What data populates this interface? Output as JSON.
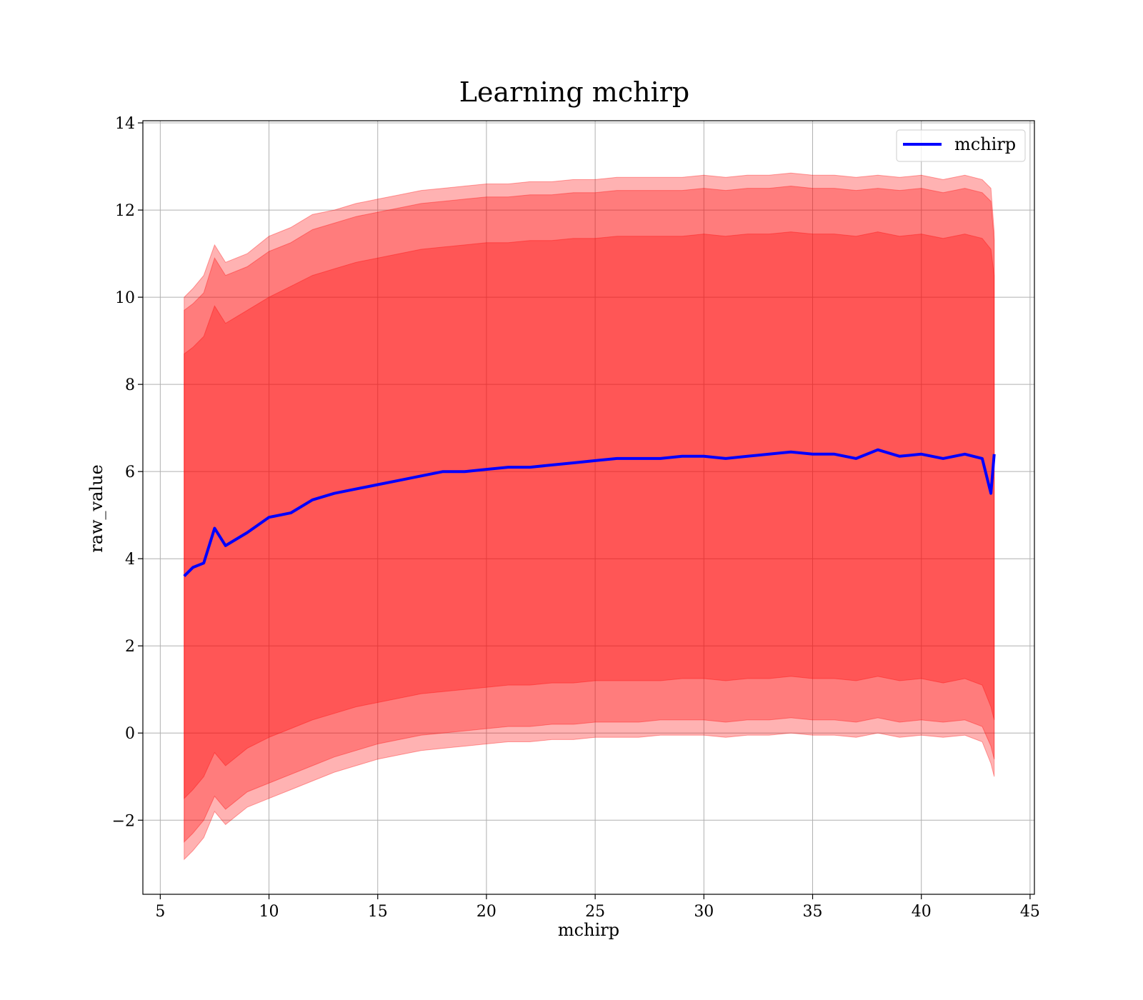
{
  "chart_data": {
    "type": "line",
    "title": "Learning mchirp",
    "xlabel": "mchirp",
    "ylabel": "raw_value",
    "xlim": [
      4.2,
      45.2
    ],
    "ylim": [
      -3.7,
      14.05
    ],
    "xticks": [
      5,
      10,
      15,
      20,
      25,
      30,
      35,
      40,
      45
    ],
    "xtick_labels": [
      "5",
      "10",
      "15",
      "20",
      "25",
      "30",
      "35",
      "40",
      "45"
    ],
    "yticks": [
      -2,
      0,
      2,
      4,
      6,
      8,
      10,
      12,
      14
    ],
    "ytick_labels": [
      "−2",
      "0",
      "2",
      "4",
      "6",
      "8",
      "10",
      "12",
      "14"
    ],
    "grid": true,
    "legend_position": "top-right",
    "colors": {
      "line": "#0000ff",
      "band": "#ff0000",
      "grid": "#b0b0b0"
    },
    "band_opacity": [
      0.3,
      0.3,
      0.3
    ],
    "series": [
      {
        "name": "mchirp",
        "x": [
          6.1,
          6.5,
          7.0,
          7.5,
          8.0,
          9.0,
          10.0,
          11.0,
          12.0,
          13.0,
          14.0,
          15.0,
          16.0,
          17.0,
          18.0,
          19.0,
          20.0,
          21.0,
          22.0,
          23.0,
          24.0,
          25.0,
          26.0,
          27.0,
          28.0,
          29.0,
          30.0,
          31.0,
          32.0,
          33.0,
          34.0,
          35.0,
          36.0,
          37.0,
          38.0,
          39.0,
          40.0,
          41.0,
          42.0,
          42.8,
          43.2,
          43.35
        ],
        "values": [
          3.6,
          3.8,
          3.9,
          4.7,
          4.3,
          4.6,
          4.95,
          5.05,
          5.35,
          5.5,
          5.6,
          5.7,
          5.8,
          5.9,
          6.0,
          6.0,
          6.05,
          6.1,
          6.1,
          6.15,
          6.2,
          6.25,
          6.3,
          6.3,
          6.3,
          6.35,
          6.35,
          6.3,
          6.35,
          6.4,
          6.45,
          6.4,
          6.4,
          6.3,
          6.5,
          6.35,
          6.4,
          6.3,
          6.4,
          6.3,
          5.5,
          6.4
        ]
      }
    ],
    "bands": [
      {
        "x": [
          6.1,
          6.5,
          7.0,
          7.5,
          8.0,
          9.0,
          10.0,
          11.0,
          12.0,
          13.0,
          14.0,
          15.0,
          16.0,
          17.0,
          18.0,
          19.0,
          20.0,
          21.0,
          22.0,
          23.0,
          24.0,
          25.0,
          26.0,
          27.0,
          28.0,
          29.0,
          30.0,
          31.0,
          32.0,
          33.0,
          34.0,
          35.0,
          36.0,
          37.0,
          38.0,
          39.0,
          40.0,
          41.0,
          42.0,
          42.8,
          43.2,
          43.35
        ],
        "upper": [
          10.0,
          10.2,
          10.5,
          11.2,
          10.8,
          11.0,
          11.4,
          11.6,
          11.9,
          12.0,
          12.15,
          12.25,
          12.35,
          12.45,
          12.5,
          12.55,
          12.6,
          12.6,
          12.65,
          12.65,
          12.7,
          12.7,
          12.75,
          12.75,
          12.75,
          12.75,
          12.8,
          12.75,
          12.8,
          12.8,
          12.85,
          12.8,
          12.8,
          12.75,
          12.8,
          12.75,
          12.8,
          12.7,
          12.8,
          12.7,
          12.5,
          11.5
        ],
        "lower": [
          -2.9,
          -2.7,
          -2.4,
          -1.8,
          -2.1,
          -1.7,
          -1.5,
          -1.3,
          -1.1,
          -0.9,
          -0.75,
          -0.6,
          -0.5,
          -0.4,
          -0.35,
          -0.3,
          -0.25,
          -0.2,
          -0.2,
          -0.15,
          -0.15,
          -0.1,
          -0.1,
          -0.1,
          -0.05,
          -0.05,
          -0.05,
          -0.1,
          -0.05,
          -0.05,
          0.0,
          -0.05,
          -0.05,
          -0.1,
          0.0,
          -0.1,
          -0.05,
          -0.1,
          -0.05,
          -0.2,
          -0.7,
          -1.0
        ]
      },
      {
        "x": [
          6.1,
          6.5,
          7.0,
          7.5,
          8.0,
          9.0,
          10.0,
          11.0,
          12.0,
          13.0,
          14.0,
          15.0,
          16.0,
          17.0,
          18.0,
          19.0,
          20.0,
          21.0,
          22.0,
          23.0,
          24.0,
          25.0,
          26.0,
          27.0,
          28.0,
          29.0,
          30.0,
          31.0,
          32.0,
          33.0,
          34.0,
          35.0,
          36.0,
          37.0,
          38.0,
          39.0,
          40.0,
          41.0,
          42.0,
          42.8,
          43.2,
          43.35
        ],
        "upper": [
          9.7,
          9.85,
          10.1,
          10.9,
          10.5,
          10.7,
          11.05,
          11.25,
          11.55,
          11.7,
          11.85,
          11.95,
          12.05,
          12.15,
          12.2,
          12.25,
          12.3,
          12.3,
          12.35,
          12.35,
          12.4,
          12.4,
          12.45,
          12.45,
          12.45,
          12.45,
          12.5,
          12.45,
          12.5,
          12.5,
          12.55,
          12.5,
          12.5,
          12.45,
          12.5,
          12.45,
          12.5,
          12.4,
          12.5,
          12.4,
          12.2,
          11.3
        ],
        "lower": [
          -2.5,
          -2.3,
          -2.0,
          -1.45,
          -1.75,
          -1.35,
          -1.15,
          -0.95,
          -0.75,
          -0.55,
          -0.4,
          -0.25,
          -0.15,
          -0.05,
          0.0,
          0.05,
          0.1,
          0.15,
          0.15,
          0.2,
          0.2,
          0.25,
          0.25,
          0.25,
          0.3,
          0.3,
          0.3,
          0.25,
          0.3,
          0.3,
          0.35,
          0.3,
          0.3,
          0.25,
          0.35,
          0.25,
          0.3,
          0.25,
          0.3,
          0.15,
          -0.3,
          -0.6
        ]
      },
      {
        "x": [
          6.1,
          6.5,
          7.0,
          7.5,
          8.0,
          9.0,
          10.0,
          11.0,
          12.0,
          13.0,
          14.0,
          15.0,
          16.0,
          17.0,
          18.0,
          19.0,
          20.0,
          21.0,
          22.0,
          23.0,
          24.0,
          25.0,
          26.0,
          27.0,
          28.0,
          29.0,
          30.0,
          31.0,
          32.0,
          33.0,
          34.0,
          35.0,
          36.0,
          37.0,
          38.0,
          39.0,
          40.0,
          41.0,
          42.0,
          42.8,
          43.2,
          43.35
        ],
        "upper": [
          8.7,
          8.85,
          9.1,
          9.8,
          9.4,
          9.7,
          10.0,
          10.25,
          10.5,
          10.65,
          10.8,
          10.9,
          11.0,
          11.1,
          11.15,
          11.2,
          11.25,
          11.25,
          11.3,
          11.3,
          11.35,
          11.35,
          11.4,
          11.4,
          11.4,
          11.4,
          11.45,
          11.4,
          11.45,
          11.45,
          11.5,
          11.45,
          11.45,
          11.4,
          11.5,
          11.4,
          11.45,
          11.35,
          11.45,
          11.35,
          11.1,
          10.5
        ],
        "lower": [
          -1.5,
          -1.3,
          -1.0,
          -0.45,
          -0.75,
          -0.35,
          -0.1,
          0.1,
          0.3,
          0.45,
          0.6,
          0.7,
          0.8,
          0.9,
          0.95,
          1.0,
          1.05,
          1.1,
          1.1,
          1.15,
          1.15,
          1.2,
          1.2,
          1.2,
          1.2,
          1.25,
          1.25,
          1.2,
          1.25,
          1.25,
          1.3,
          1.25,
          1.25,
          1.2,
          1.3,
          1.2,
          1.25,
          1.15,
          1.25,
          1.1,
          0.6,
          0.3
        ]
      }
    ]
  }
}
